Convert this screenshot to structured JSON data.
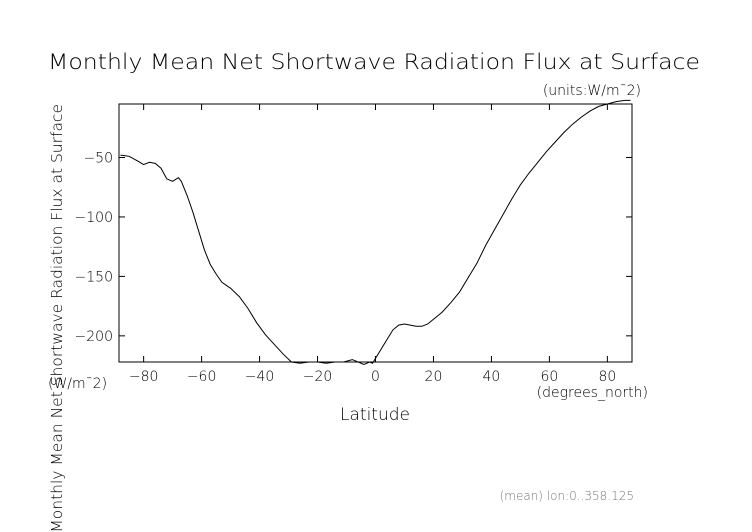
{
  "chart_data": {
    "type": "line",
    "title": "Monthly Mean Net Shortwave Radiation Flux at Surface",
    "units_note": "(units:W/m¯2)",
    "xlabel": "Latitude",
    "xunit": "(degrees_north)",
    "ylabel": "Monthly Mean Net Shortwave Radiation Flux at Surface",
    "yunit": "(W/m¯2)",
    "footnote": "(mean) lon:0..358.125",
    "xlim": [
      -88.5,
      88.5
    ],
    "ylim": [
      -222,
      -5
    ],
    "grid": false,
    "x_ticks": [
      -80,
      -60,
      -40,
      -20,
      0,
      20,
      40,
      60,
      80
    ],
    "x_tick_labels": [
      "−80",
      "−60",
      "−40",
      "−20",
      "0",
      "20",
      "40",
      "60",
      "80"
    ],
    "y_ticks": [
      -50,
      -100,
      -150,
      -200
    ],
    "y_tick_labels": [
      "−50",
      "−100",
      "−150",
      "−200"
    ],
    "series": [
      {
        "x": [
          -88,
          -85,
          -82,
          -80,
          -78,
          -76,
          -74,
          -72,
          -70,
          -68,
          -67,
          -65,
          -63,
          -61,
          -59,
          -57,
          -55,
          -53,
          -50,
          -47,
          -44,
          -41,
          -38,
          -35,
          -32,
          -29,
          -26,
          -23,
          -20,
          -17,
          -14,
          -11,
          -8,
          -6,
          -4,
          -2,
          -1,
          0,
          2,
          4,
          6,
          8,
          10,
          12,
          14,
          16,
          18,
          20,
          23,
          26,
          29,
          32,
          35,
          38,
          41,
          44,
          47,
          50,
          53,
          56,
          59,
          62,
          65,
          68,
          71,
          74,
          77,
          80,
          83,
          86,
          88
        ],
        "y": [
          -48,
          -49,
          -53,
          -56,
          -54,
          -55,
          -59,
          -68,
          -70,
          -67,
          -70,
          -82,
          -96,
          -112,
          -128,
          -140,
          -148,
          -155,
          -160,
          -167,
          -177,
          -189,
          -199,
          -207,
          -215,
          -222,
          -223,
          -222,
          -222,
          -223,
          -222,
          -222,
          -220,
          -222,
          -224,
          -222,
          -223,
          -219,
          -211,
          -203,
          -195,
          -191,
          -190,
          -191,
          -192,
          -192,
          -190,
          -186,
          -180,
          -172,
          -163,
          -151,
          -139,
          -124,
          -111,
          -98,
          -85,
          -73,
          -63,
          -54,
          -45,
          -37,
          -29,
          -22,
          -16,
          -11,
          -7,
          -5,
          -3,
          -2,
          -2
        ]
      }
    ]
  }
}
